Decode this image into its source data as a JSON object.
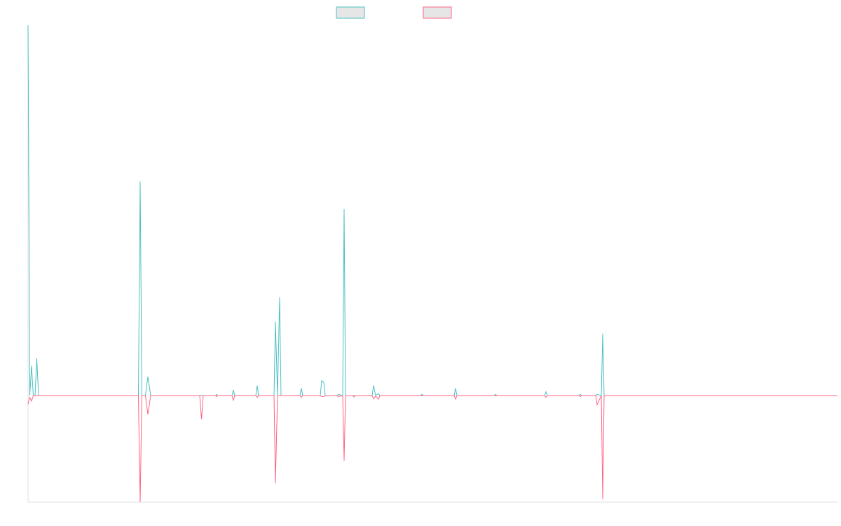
{
  "chart_data": {
    "type": "line",
    "x": [
      0,
      1,
      2,
      3,
      4,
      5,
      6,
      63,
      64,
      65,
      67,
      68.4,
      70,
      98,
      99,
      100,
      107,
      107.6,
      108.2,
      116.4,
      117.2,
      118,
      130,
      130.8,
      131.6,
      140.4,
      141.2,
      142.4,
      143.6,
      144.4,
      155.2,
      156,
      156.8,
      166.8,
      167.6,
      168.8,
      169.6,
      176.4,
      177.2,
      179.6,
      180.4,
      181.2,
      185.2,
      186,
      186.8,
      196.4,
      197.2,
      198.4,
      200,
      200.8,
      224,
      224.8,
      225.6,
      243.2,
      244,
      244.8,
      266,
      266.8,
      267.6,
      294.8,
      295.6,
      296.4,
      314.4,
      315.2,
      316,
      324,
      324.8,
      327.2,
      328,
      328.8,
      462
    ],
    "series": [
      {
        "color": "#4bc0c0",
        "values": [
          100,
          0,
          8,
          0,
          0,
          10,
          0,
          0,
          57.8,
          0,
          0,
          5.1,
          0,
          0,
          0,
          0,
          0,
          0.3,
          0,
          0,
          1.5,
          0,
          0,
          2.7,
          0,
          0,
          20,
          0,
          26.5,
          0,
          0,
          2,
          0,
          0,
          4,
          3.6,
          0,
          0,
          0.3,
          0,
          50.4,
          0,
          0,
          0,
          0,
          0,
          2.7,
          0,
          0.5,
          0,
          0,
          0.3,
          0,
          0,
          2,
          0,
          0,
          0.3,
          0,
          0,
          1,
          0,
          0,
          0.3,
          0,
          0,
          0.3,
          0,
          16.7,
          0,
          0
        ]
      },
      {
        "color": "#ff6384",
        "values": [
          -2.3,
          -0.5,
          -1.5,
          0,
          0,
          0,
          0,
          0,
          -28.8,
          0,
          0,
          -5.1,
          0,
          0,
          -6.4,
          0,
          0,
          -0.3,
          0,
          0,
          -1.3,
          0,
          0,
          -0.5,
          0,
          0,
          -23.7,
          0,
          0,
          0,
          0,
          -0.5,
          0,
          0,
          -0.3,
          -0.3,
          0,
          0,
          -0.3,
          0,
          -17.6,
          0,
          0,
          -0.4,
          0,
          0,
          -0.9,
          -0.2,
          -1,
          0,
          0,
          0,
          0,
          0,
          -1,
          0,
          0,
          -0.1,
          0,
          0,
          -0.5,
          0,
          0,
          -0.3,
          0,
          0,
          -2.5,
          0,
          -28,
          0,
          0
        ]
      }
    ],
    "xlim": [
      0,
      462
    ],
    "ylim": [
      -28.8,
      100
    ]
  }
}
